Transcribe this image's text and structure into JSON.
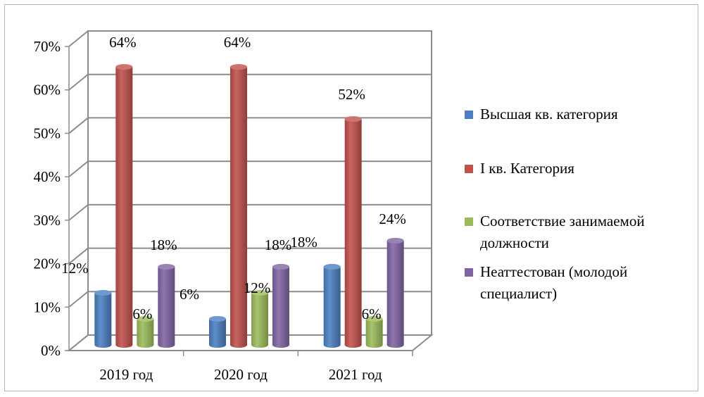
{
  "chart_data": {
    "type": "bar",
    "categories": [
      "2019 год",
      "2020 год",
      "2021 год"
    ],
    "series": [
      {
        "name": "Высшая кв. категория",
        "color": "#4a7fc1",
        "values": [
          12,
          6,
          18
        ]
      },
      {
        "name": "I кв. Категория",
        "color": "#c0504d",
        "values": [
          64,
          64,
          52
        ]
      },
      {
        "name": "Соответствие занимаемой должности",
        "color": "#9bbb59",
        "values": [
          6,
          12,
          6
        ]
      },
      {
        "name": "Неаттестован (молодой специалист)",
        "color": "#8064a2",
        "values": [
          18,
          18,
          24
        ]
      }
    ],
    "data_labels": [
      [
        "12%",
        "6%",
        "18%"
      ],
      [
        "64%",
        "64%",
        "52%"
      ],
      [
        "6%",
        "12%",
        "6%"
      ],
      [
        "18%",
        "18%",
        "24%"
      ]
    ],
    "legend_lines": [
      [
        "Высшая кв. категория"
      ],
      [
        "I кв. Категория"
      ],
      [
        "Соответствие занимаемой",
        "должности"
      ],
      [
        "Неаттестован (молодой",
        "специалист)"
      ]
    ],
    "y_ticks": [
      "0%",
      "10%",
      "20%",
      "30%",
      "40%",
      "50%",
      "60%",
      "70%"
    ],
    "ylim": [
      0,
      70
    ],
    "grid": true,
    "legend_position": "right",
    "title": "",
    "xlabel": "",
    "ylabel": ""
  }
}
